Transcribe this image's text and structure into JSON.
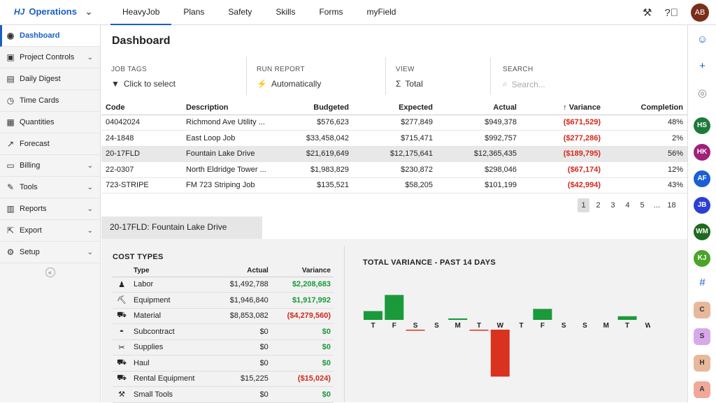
{
  "app": {
    "brand": "Operations",
    "logo": "HJ"
  },
  "topnav": [
    "HeavyJob",
    "Plans",
    "Safety",
    "Skills",
    "Forms",
    "myField"
  ],
  "user": {
    "initials": "AB",
    "color": "#7a2e1a"
  },
  "sidebar": {
    "items": [
      {
        "label": "Dashboard",
        "icon": "dashboard-icon",
        "active": true,
        "expandable": false
      },
      {
        "label": "Project Controls",
        "icon": "briefcase-icon",
        "active": false,
        "expandable": true
      },
      {
        "label": "Daily Digest",
        "icon": "newspaper-icon",
        "active": false,
        "expandable": false
      },
      {
        "label": "Time Cards",
        "icon": "clock-icon",
        "active": false,
        "expandable": false
      },
      {
        "label": "Quantities",
        "icon": "calculator-icon",
        "active": false,
        "expandable": false
      },
      {
        "label": "Forecast",
        "icon": "trend-icon",
        "active": false,
        "expandable": false
      },
      {
        "label": "Billing",
        "icon": "money-icon",
        "active": false,
        "expandable": true
      },
      {
        "label": "Tools",
        "icon": "wrench-icon",
        "active": false,
        "expandable": true
      },
      {
        "label": "Reports",
        "icon": "bar-chart-icon",
        "active": false,
        "expandable": true
      },
      {
        "label": "Export",
        "icon": "export-icon",
        "active": false,
        "expandable": true
      },
      {
        "label": "Setup",
        "icon": "gear-icon",
        "active": false,
        "expandable": true
      }
    ]
  },
  "page": {
    "title": "Dashboard"
  },
  "filters": {
    "job_tags": {
      "label": "JOB TAGS",
      "value": "Click to select"
    },
    "run_report": {
      "label": "RUN REPORT",
      "value": "Automatically"
    },
    "view": {
      "label": "VIEW",
      "value": "Total"
    },
    "search": {
      "label": "SEARCH",
      "placeholder": "Search..."
    }
  },
  "jobs": {
    "headers": {
      "code": "Code",
      "description": "Description",
      "budgeted": "Budgeted",
      "expected": "Expected",
      "actual": "Actual",
      "variance": "Variance",
      "completion": "Completion"
    },
    "rows": [
      {
        "code": "04042024",
        "description": "Richmond Ave Utility ...",
        "budgeted": "$576,623",
        "expected": "$277,849",
        "actual": "$949,378",
        "variance": "($671,529)",
        "completion": "48%"
      },
      {
        "code": "24-1848",
        "description": "East Loop Job",
        "budgeted": "$33,458,042",
        "expected": "$715,471",
        "actual": "$992,757",
        "variance": "($277,286)",
        "completion": "2%"
      },
      {
        "code": "20-17FLD",
        "description": "Fountain Lake Drive",
        "budgeted": "$21,619,649",
        "expected": "$12,175,641",
        "actual": "$12,365,435",
        "variance": "($189,795)",
        "completion": "56%"
      },
      {
        "code": "22-0307",
        "description": "North Eldridge Tower ...",
        "budgeted": "$1,983,829",
        "expected": "$230,872",
        "actual": "$298,046",
        "variance": "($67,174)",
        "completion": "12%"
      },
      {
        "code": "723-STRIPE",
        "description": "FM 723 Striping Job",
        "budgeted": "$135,521",
        "expected": "$58,205",
        "actual": "$101,199",
        "variance": "($42,994)",
        "completion": "43%"
      }
    ],
    "selected_row": 2
  },
  "pagination": {
    "pages": [
      "1",
      "2",
      "3",
      "4",
      "5"
    ],
    "ellipsis": "...",
    "last": "18",
    "current": "1"
  },
  "detail": {
    "tab_title": "20-17FLD: Fountain Lake Drive",
    "cost_types": {
      "title": "COST TYPES",
      "headers": {
        "type": "Type",
        "actual": "Actual",
        "variance": "Variance"
      },
      "rows": [
        {
          "icon": "person-icon",
          "type": "Labor",
          "actual": "$1,492,788",
          "variance": "$2,208,683",
          "sign": "pos"
        },
        {
          "icon": "excavator-icon",
          "type": "Equipment",
          "actual": "$1,946,840",
          "variance": "$1,917,992",
          "sign": "pos"
        },
        {
          "icon": "truck-icon",
          "type": "Material",
          "actual": "$8,853,082",
          "variance": "($4,279,560)",
          "sign": "neg"
        },
        {
          "icon": "hardhat-icon",
          "type": "Subcontract",
          "actual": "$0",
          "variance": "$0",
          "sign": "pos"
        },
        {
          "icon": "supplies-icon",
          "type": "Supplies",
          "actual": "$0",
          "variance": "$0",
          "sign": "pos"
        },
        {
          "icon": "haul-icon",
          "type": "Haul",
          "actual": "$0",
          "variance": "$0",
          "sign": "pos"
        },
        {
          "icon": "rental-icon",
          "type": "Rental Equipment",
          "actual": "$15,225",
          "variance": "($15,024)",
          "sign": "neg"
        },
        {
          "icon": "tools-icon",
          "type": "Small Tools",
          "actual": "$0",
          "variance": "$0",
          "sign": "pos"
        }
      ]
    }
  },
  "chart_data": {
    "type": "bar",
    "title": "TOTAL VARIANCE - PAST 14 DAYS",
    "categories": [
      "T",
      "F",
      "S",
      "S",
      "M",
      "T",
      "W",
      "T",
      "F",
      "S",
      "S",
      "M",
      "T",
      "W"
    ],
    "values": [
      12,
      34,
      -1,
      0,
      2,
      -1,
      -64,
      0,
      15,
      0,
      0,
      0,
      5,
      0
    ],
    "colors": {
      "positive": "#1a9a3a",
      "negative": "#d9321f"
    }
  },
  "rightbar": {
    "icons": [
      "robot-icon",
      "add-user-icon",
      "group-icon"
    ],
    "avatars": [
      {
        "initials": "HS",
        "color": "#1e7a3a"
      },
      {
        "initials": "HK",
        "color": "#a0207a"
      },
      {
        "initials": "AF",
        "color": "#1a5fd4"
      },
      {
        "initials": "JB",
        "color": "#2a3fd4"
      },
      {
        "initials": "WM",
        "color": "#1e6a1e"
      },
      {
        "initials": "KJ",
        "color": "#4aa42a"
      }
    ],
    "hash": "#",
    "channels": [
      {
        "initials": "C",
        "color": "#e8b89a"
      },
      {
        "initials": "S",
        "color": "#d8a8e8"
      },
      {
        "initials": "H",
        "color": "#e8b89a"
      },
      {
        "initials": "A",
        "color": "#f0a898"
      }
    ]
  }
}
